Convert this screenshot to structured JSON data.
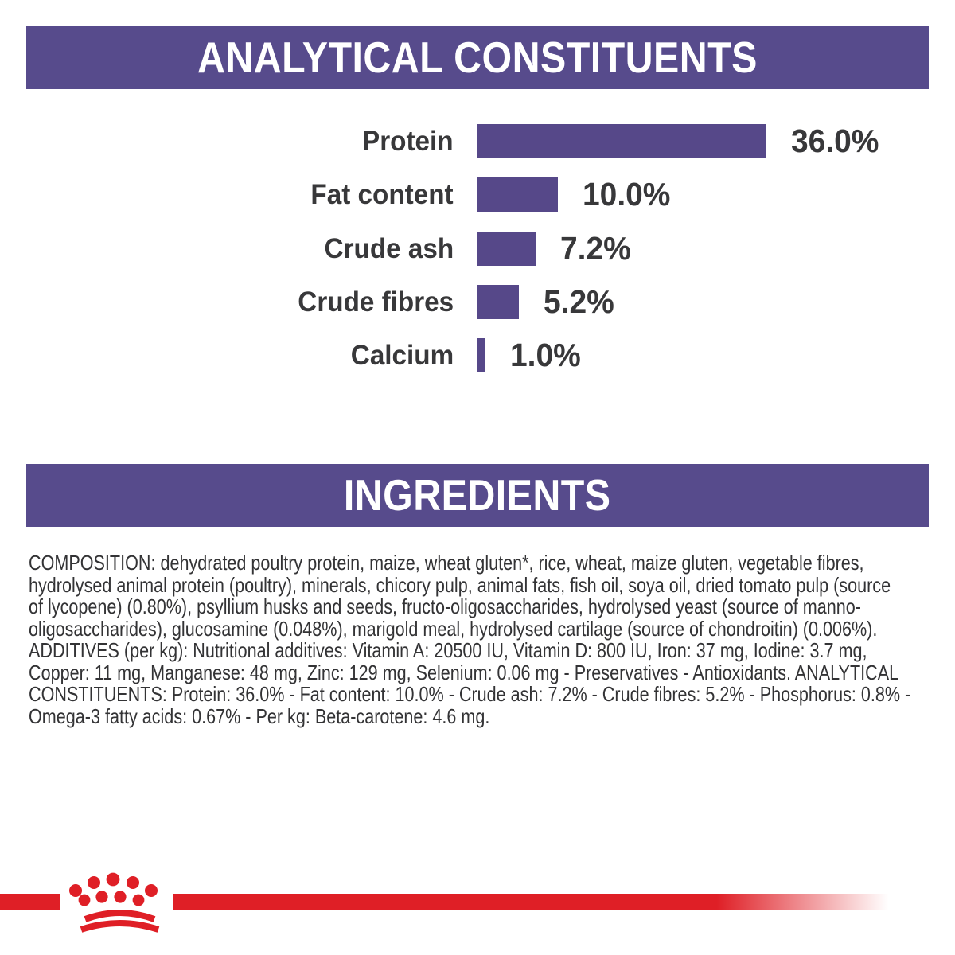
{
  "colors": {
    "purple_header": "#574b8c",
    "purple_bar": "#564889",
    "text_dark": "#38383a",
    "body_text": "#333335",
    "brand_red": "#df1f26",
    "background": "#ffffff"
  },
  "sections": {
    "analytical": {
      "title": "ANALYTICAL CONSTITUENTS"
    },
    "ingredients": {
      "title": "INGREDIENTS"
    }
  },
  "chart_data": {
    "type": "bar",
    "orientation": "horizontal",
    "title": "ANALYTICAL CONSTITUENTS",
    "categories": [
      "Protein",
      "Fat content",
      "Crude ash",
      "Crude fibres",
      "Calcium"
    ],
    "values": [
      36.0,
      10.0,
      7.2,
      5.2,
      1.0
    ],
    "value_labels": [
      "36.0%",
      "10.0%",
      "7.2%",
      "5.2%",
      "1.0%"
    ],
    "unit": "%",
    "xlim": [
      0,
      36
    ],
    "grid": false,
    "axes_shown": false,
    "bar_color": "#564889",
    "labels_position": "left",
    "values_position": "right-of-bar"
  },
  "composition": {
    "lines": [
      "COMPOSITION: dehydrated poultry protein, maize, wheat gluten*, rice, wheat, maize gluten, vegetable fibres,",
      "hydrolysed animal protein (poultry), minerals, chicory pulp, animal fats, fish oil, soya oil, dried tomato pulp (source",
      "of lycopene) (0.80%), psyllium husks and seeds, fructo-oligosaccharides, hydrolysed yeast (source of manno-",
      "oligosaccharides), glucosamine (0.048%), marigold meal, hydrolysed cartilage (source of chondroitin) (0.006%).",
      "ADDITIVES (per kg): Nutritional additives: Vitamin A: 20500 IU, Vitamin D: 800 IU, Iron: 37 mg, Iodine: 3.7 mg,",
      "Copper: 11 mg, Manganese: 48 mg, Zinc: 129 mg, Selenium: 0.06 mg - Preservatives - Antioxidants. ANALYTICAL",
      "CONSTITUENTS: Protein: 36.0% - Fat content: 10.0% - Crude ash: 7.2% - Crude fibres: 5.2% - Phosphorus: 0.8% -",
      "Omega-3 fatty acids: 0.67% - Per kg: Beta-carotene: 4.6 mg."
    ]
  },
  "footer": {
    "logo_name": "royal-canin-crown"
  }
}
